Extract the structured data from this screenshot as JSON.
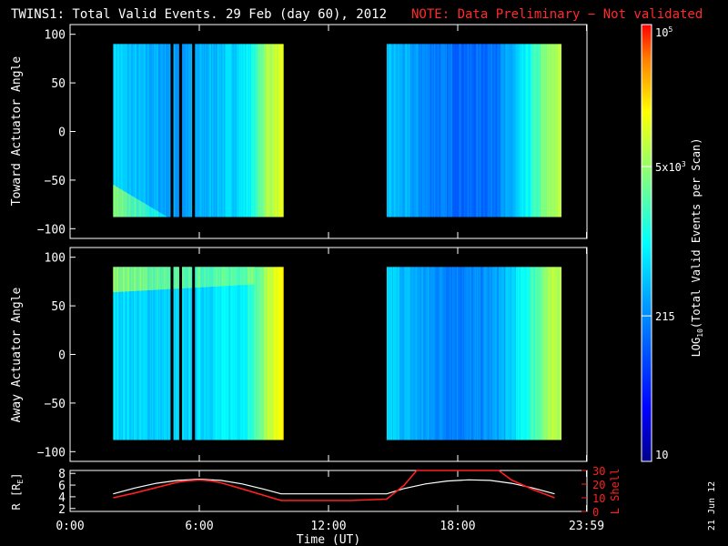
{
  "title": {
    "main": "TWINS1: Total Valid Events. 29 Feb (day  60), 2012",
    "note": "NOTE: Data Preliminary − Not validated",
    "note_color": "#ff2a2a"
  },
  "date_stamp": "21 Jun 12",
  "chart_data": [
    {
      "type": "heatmap",
      "ylabel": "Toward Actuator Angle",
      "ylim": [
        -110,
        110
      ],
      "yticks": [
        "100",
        "50",
        "0",
        "−50",
        "−100"
      ],
      "ytick_values": [
        100,
        50,
        0,
        -50,
        -100
      ],
      "angle_range": [
        -88,
        90
      ],
      "blocks": [
        {
          "start_h": 2.0,
          "end_h": 9.9
        },
        {
          "start_h": 14.7,
          "end_h": 22.8
        }
      ],
      "gaps_h": [
        [
          4.6,
          4.75
        ],
        [
          5.0,
          5.15
        ],
        [
          5.6,
          5.75
        ]
      ],
      "column_levels": [
        {
          "h": 2.0,
          "v": 0.46
        },
        {
          "h": 2.5,
          "v": 0.42
        },
        {
          "h": 3.0,
          "v": 0.4
        },
        {
          "h": 3.5,
          "v": 0.39
        },
        {
          "h": 4.0,
          "v": 0.38
        },
        {
          "h": 4.5,
          "v": 0.37
        },
        {
          "h": 5.2,
          "v": 0.36
        },
        {
          "h": 6.0,
          "v": 0.38
        },
        {
          "h": 6.5,
          "v": 0.4
        },
        {
          "h": 7.0,
          "v": 0.42
        },
        {
          "h": 7.5,
          "v": 0.44
        },
        {
          "h": 8.0,
          "v": 0.47
        },
        {
          "h": 8.5,
          "v": 0.52
        },
        {
          "h": 8.8,
          "v": 0.62
        },
        {
          "h": 9.1,
          "v": 0.7
        },
        {
          "h": 9.5,
          "v": 0.73
        },
        {
          "h": 9.9,
          "v": 0.74
        },
        {
          "h": 14.7,
          "v": 0.42
        },
        {
          "h": 15.5,
          "v": 0.38
        },
        {
          "h": 16.5,
          "v": 0.33
        },
        {
          "h": 17.5,
          "v": 0.3
        },
        {
          "h": 18.5,
          "v": 0.28
        },
        {
          "h": 19.5,
          "v": 0.3
        },
        {
          "h": 20.3,
          "v": 0.36
        },
        {
          "h": 21.0,
          "v": 0.45
        },
        {
          "h": 21.5,
          "v": 0.55
        },
        {
          "h": 22.0,
          "v": 0.64
        },
        {
          "h": 22.5,
          "v": 0.7
        },
        {
          "h": 22.8,
          "v": 0.72
        }
      ],
      "enhancement": {
        "region": "low-angle",
        "angle_below": -55,
        "hours": [
          2.0,
          4.5
        ]
      }
    },
    {
      "type": "heatmap",
      "ylabel": "Away Actuator Angle",
      "ylim": [
        -110,
        110
      ],
      "yticks": [
        "100",
        "50",
        "0",
        "−50",
        "−100"
      ],
      "ytick_values": [
        100,
        50,
        0,
        -50,
        -100
      ],
      "angle_range": [
        -88,
        90
      ],
      "blocks": [
        {
          "start_h": 2.0,
          "end_h": 9.9
        },
        {
          "start_h": 14.7,
          "end_h": 22.8
        }
      ],
      "gaps_h": [
        [
          4.6,
          4.75
        ],
        [
          5.0,
          5.15
        ],
        [
          5.6,
          5.75
        ]
      ],
      "column_levels": [
        {
          "h": 2.0,
          "v": 0.46
        },
        {
          "h": 3.0,
          "v": 0.44
        },
        {
          "h": 4.0,
          "v": 0.43
        },
        {
          "h": 5.0,
          "v": 0.43
        },
        {
          "h": 6.0,
          "v": 0.45
        },
        {
          "h": 7.0,
          "v": 0.47
        },
        {
          "h": 8.0,
          "v": 0.5
        },
        {
          "h": 8.5,
          "v": 0.56
        },
        {
          "h": 8.9,
          "v": 0.66
        },
        {
          "h": 9.3,
          "v": 0.74
        },
        {
          "h": 9.9,
          "v": 0.78
        },
        {
          "h": 14.7,
          "v": 0.45
        },
        {
          "h": 15.5,
          "v": 0.4
        },
        {
          "h": 16.5,
          "v": 0.36
        },
        {
          "h": 17.5,
          "v": 0.33
        },
        {
          "h": 18.5,
          "v": 0.32
        },
        {
          "h": 19.5,
          "v": 0.35
        },
        {
          "h": 20.3,
          "v": 0.41
        },
        {
          "h": 21.0,
          "v": 0.5
        },
        {
          "h": 21.5,
          "v": 0.58
        },
        {
          "h": 22.0,
          "v": 0.66
        },
        {
          "h": 22.5,
          "v": 0.71
        },
        {
          "h": 22.8,
          "v": 0.73
        }
      ],
      "enhancement": {
        "region": "high-angle",
        "angle_above": 72,
        "hours": [
          2.0,
          8.5
        ]
      }
    },
    {
      "type": "line",
      "ylabel_left": "R [R",
      "ylabel_left_sub": "E",
      "ylabel_left_end": "]",
      "ylabel_right": "L Shell",
      "ylim_left": [
        1.5,
        8.5
      ],
      "ylim_right": [
        0,
        30
      ],
      "yticks_left": [
        "8",
        "6",
        "4",
        "2"
      ],
      "ytick_values_left": [
        8,
        6,
        4,
        2
      ],
      "yticks_right": [
        "30",
        "20",
        "10",
        "0"
      ],
      "ytick_values_right": [
        30,
        20,
        10,
        0
      ],
      "series": [
        {
          "color": "#ffffff",
          "axis": "left",
          "x": [
            2.0,
            3.0,
            4.0,
            5.0,
            6.0,
            7.0,
            8.0,
            9.0,
            9.8,
            11.0,
            12.0,
            13.0,
            14.0,
            14.7,
            15.5,
            16.5,
            17.5,
            18.5,
            19.5,
            20.5,
            21.5,
            22.5
          ],
          "y": [
            4.5,
            5.5,
            6.3,
            6.8,
            7.0,
            6.8,
            6.2,
            5.3,
            4.5,
            4.5,
            4.5,
            4.5,
            4.5,
            4.5,
            5.4,
            6.2,
            6.7,
            6.9,
            6.8,
            6.3,
            5.5,
            4.5
          ]
        },
        {
          "color": "#ff2020",
          "axis": "right",
          "x": [
            2.0,
            3.0,
            4.0,
            5.0,
            5.5,
            6.0,
            6.5,
            7.0,
            8.0,
            9.8,
            11.0,
            12.0,
            13.0,
            14.7,
            15.5,
            16.1,
            19.9,
            20.5,
            21.5,
            22.5
          ],
          "y": [
            10.0,
            13.5,
            17.5,
            21.5,
            22.5,
            23.0,
            22.5,
            21.0,
            16.5,
            8.0,
            8.0,
            8.0,
            8.0,
            9.0,
            19.0,
            30.0,
            30.0,
            23.0,
            16.0,
            10.0
          ]
        }
      ]
    }
  ],
  "x_axis": {
    "title": "Time (UT)",
    "ticks": [
      "0:00",
      "6:00",
      "12:00",
      "18:00",
      "23:59"
    ],
    "tick_values": [
      0,
      6,
      12,
      18,
      23.98
    ],
    "xlim": [
      0,
      24
    ]
  },
  "colorbar": {
    "label": "LOG",
    "label_sub": "10",
    "label_end": "(Total Valid Events per Scan)",
    "tick_labels": [
      {
        "v": 1.0,
        "base": "10",
        "exp": ""
      },
      {
        "v": 2.3324,
        "base": "215",
        "exp": ""
      },
      {
        "v": 3.699,
        "base": "5x10",
        "exp": "3"
      },
      {
        "v": 5.0,
        "base": "10",
        "exp": "5"
      }
    ],
    "scale": "log10",
    "range": [
      1.0,
      5.0
    ]
  }
}
